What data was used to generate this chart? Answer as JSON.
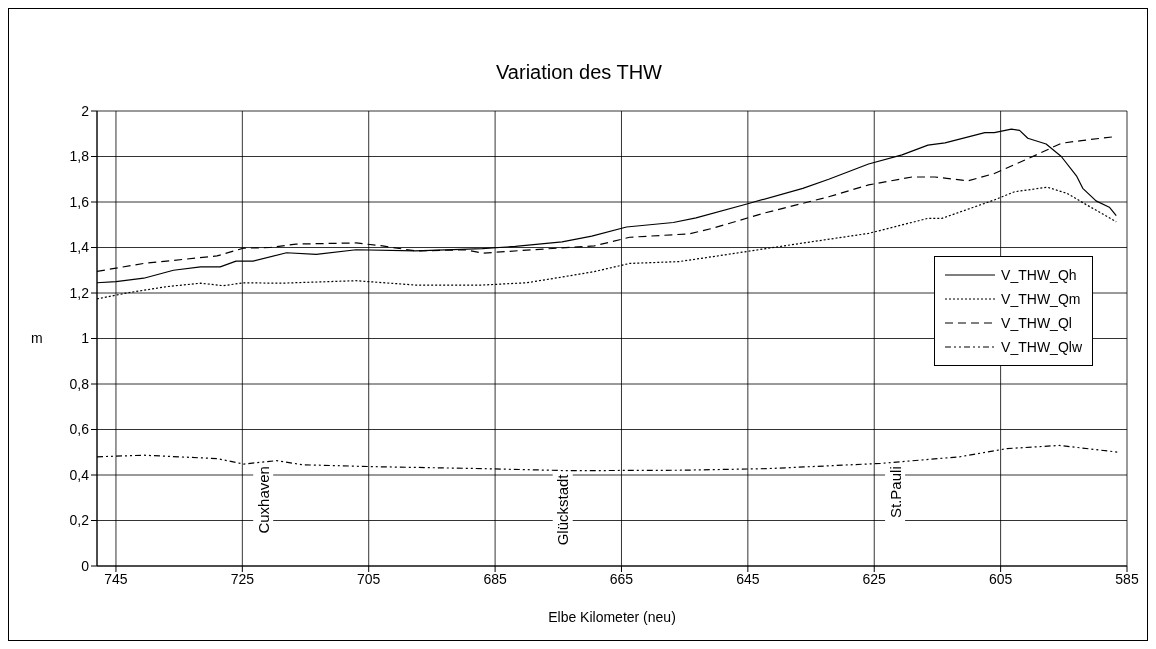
{
  "chart_data": {
    "type": "line",
    "title": "Variation des THW",
    "xlabel": "Elbe Kilometer (neu)",
    "ylabel": "m",
    "xlim": [
      748,
      585
    ],
    "xticks": [
      745,
      725,
      705,
      685,
      665,
      645,
      625,
      605,
      585
    ],
    "ylim": [
      0,
      2
    ],
    "yticks": [
      0,
      {
        "value": 0.2,
        "label": "0,2"
      },
      {
        "value": 0.4,
        "label": "0,4"
      },
      {
        "value": 0.6,
        "label": "0,6"
      },
      {
        "value": 0.8,
        "label": "0,8"
      },
      1,
      {
        "value": 1.2,
        "label": "1,2"
      },
      {
        "value": 1.4,
        "label": "1,4"
      },
      {
        "value": 1.6,
        "label": "1,6"
      },
      {
        "value": 1.8,
        "label": "1,8"
      },
      2
    ],
    "grid": true,
    "legend": "right",
    "marker": "none",
    "series": [
      {
        "name": "V_THW_Qh",
        "color": "#000000",
        "line_style": "solid",
        "x": [
          748,
          745,
          740.6,
          735.9,
          731.6,
          728.5,
          726,
          723.3,
          718,
          713.3,
          707,
          697.6,
          687,
          681.8,
          674.4,
          669.7,
          664.2,
          656.8,
          653.2,
          645.3,
          636.3,
          632.2,
          625.9,
          620.6,
          616.5,
          613.8,
          607.5,
          606,
          603.3,
          602,
          600.7,
          597.8,
          595.4,
          593,
          592,
          589.9,
          587.8,
          586.7
        ],
        "values": [
          1.245,
          1.25,
          1.265,
          1.3,
          1.315,
          1.315,
          1.34,
          1.34,
          1.377,
          1.37,
          1.39,
          1.385,
          1.395,
          1.405,
          1.425,
          1.45,
          1.49,
          1.51,
          1.53,
          1.59,
          1.66,
          1.7,
          1.767,
          1.807,
          1.85,
          1.86,
          1.905,
          1.905,
          1.92,
          1.915,
          1.88,
          1.855,
          1.8,
          1.715,
          1.66,
          1.605,
          1.577,
          1.54
        ]
      },
      {
        "name": "V_THW_Qm",
        "color": "#000000",
        "line_style": "dotted",
        "x": [
          748,
          743.3,
          737,
          731.6,
          728,
          724.8,
          719,
          707,
          697.6,
          687,
          680,
          674,
          669.3,
          663.7,
          655.9,
          650.5,
          637.4,
          625.9,
          616.5,
          614.3,
          606,
          602.8,
          597.6,
          594.5,
          591.8,
          586.7
        ],
        "values": [
          1.174,
          1.2,
          1.228,
          1.243,
          1.232,
          1.245,
          1.243,
          1.254,
          1.235,
          1.235,
          1.245,
          1.272,
          1.294,
          1.33,
          1.338,
          1.36,
          1.415,
          1.462,
          1.528,
          1.528,
          1.609,
          1.645,
          1.665,
          1.638,
          1.594,
          1.513
        ]
      },
      {
        "name": "V_THW_Ql",
        "color": "#000000",
        "line_style": "dashed",
        "x": [
          748,
          740.6,
          729,
          724.8,
          720.6,
          716.5,
          707,
          702.8,
          697.6,
          689.7,
          687,
          679.2,
          669.3,
          663.7,
          654.3,
          650.5,
          642.6,
          632.2,
          625.9,
          619,
          615.4,
          610.2,
          606,
          600.7,
          595.4,
          592.2,
          587
        ],
        "values": [
          1.295,
          1.33,
          1.363,
          1.397,
          1.4,
          1.415,
          1.42,
          1.407,
          1.385,
          1.39,
          1.375,
          1.39,
          1.407,
          1.445,
          1.46,
          1.485,
          1.55,
          1.623,
          1.675,
          1.71,
          1.71,
          1.693,
          1.725,
          1.79,
          1.858,
          1.87,
          1.887
        ]
      },
      {
        "name": "V_THW_Qlw",
        "color": "#000000",
        "line_style": "dashdot",
        "x": [
          748,
          740.6,
          729,
          724.8,
          719.6,
          715.4,
          704.8,
          687,
          673.3,
          655.6,
          641.9,
          624,
          611.5,
          604,
          595.7,
          586.3
        ],
        "values": [
          0.48,
          0.487,
          0.472,
          0.448,
          0.463,
          0.445,
          0.437,
          0.428,
          0.419,
          0.421,
          0.428,
          0.451,
          0.48,
          0.516,
          0.53,
          0.5
        ]
      }
    ],
    "annotations": [
      {
        "text": "Cuxhaven",
        "x": 721.7,
        "y": 0.457
      },
      {
        "text": "Glückstadt",
        "x": 674.3,
        "y": 0.42
      },
      {
        "text": "St.Pauli",
        "x": 621.7,
        "y": 0.456
      }
    ]
  }
}
